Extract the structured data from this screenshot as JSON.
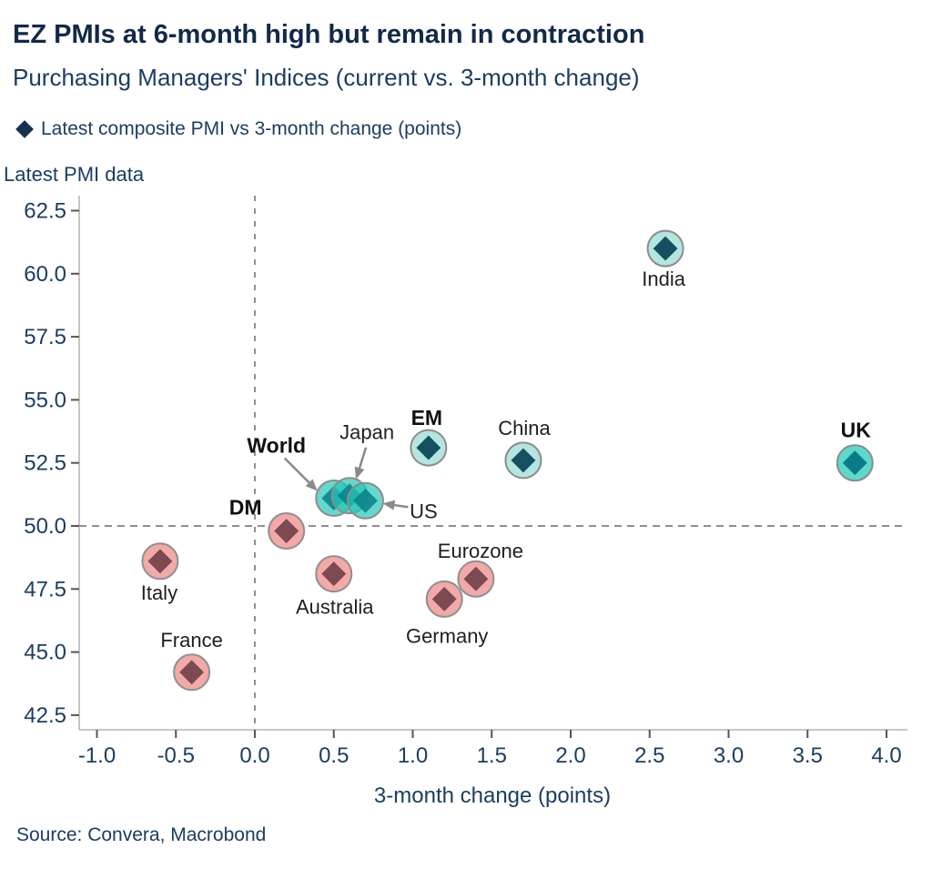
{
  "footer": {
    "source": "Source: Convera, Macrobond"
  },
  "colors": {
    "title_navy": "#12294a",
    "text_navy": "#1c3d63",
    "label_black": "#1f1f1f",
    "axis_line": "#b3b3b3",
    "tick_mark": "#555555",
    "dashed_reference": "#8f8f8f",
    "arrow_gray": "#8a8a8a",
    "legend_marker": "#16324f"
  },
  "legend_icon": "diamond-icon",
  "chart_data": {
    "type": "scatter",
    "title": "EZ PMIs at 6-month high but remain in contraction",
    "subtitle": "Purchasing Managers' Indices (current vs. 3-month change)",
    "legend": {
      "label": "Latest composite PMI vs 3-month change (points)",
      "marker": "diamond-icon"
    },
    "xlabel": "3-month change (points)",
    "ylabel": "Latest PMI data",
    "xticks": [
      -1.0,
      -0.5,
      0.0,
      0.5,
      1.0,
      1.5,
      2.0,
      2.5,
      3.0,
      3.5,
      4.0
    ],
    "yticks": [
      42.5,
      45.0,
      47.5,
      50.0,
      52.5,
      55.0,
      57.5,
      60.0,
      62.5
    ],
    "xlim": [
      -1.11,
      4.12
    ],
    "ylim": [
      41.9,
      63.1
    ],
    "grid": false,
    "legend_position": "top-left",
    "reference_lines": {
      "x": 0.0,
      "y": 50.0
    },
    "groups": {
      "teal_light": {
        "fill": "#b5e5e0",
        "diamond": "#14505f",
        "stroke": "#8c8c8c"
      },
      "teal_bright": {
        "fill": "rgba(34,199,184,0.70)",
        "diamond": "rgba(8,128,138,0.85)",
        "stroke": "#8c8c8c"
      },
      "teal_solid": {
        "fill": "#5cd8cc",
        "diamond": "#0b7c86",
        "stroke": "#8c8c8c"
      },
      "pink": {
        "fill": "#f2a9a7",
        "diamond": "#7b4a52",
        "stroke": "#909090"
      }
    },
    "points": [
      {
        "label": "Italy",
        "x": -0.6,
        "y": 48.6,
        "group": "pink",
        "bold": false,
        "label_offset": [
          -1,
          42
        ]
      },
      {
        "label": "France",
        "x": -0.4,
        "y": 44.2,
        "group": "pink",
        "bold": false,
        "label_offset": [
          0,
          -28
        ]
      },
      {
        "label": "DM",
        "x": 0.2,
        "y": 49.8,
        "group": "pink",
        "bold": true,
        "label_offset": [
          -45,
          -18
        ]
      },
      {
        "label": "Eurozone",
        "x": 1.4,
        "y": 47.9,
        "group": "pink",
        "bold": false,
        "label_offset": [
          5,
          -23
        ]
      },
      {
        "label": "Germany",
        "x": 1.2,
        "y": 47.1,
        "group": "pink",
        "bold": false,
        "label_offset": [
          3,
          48
        ]
      },
      {
        "label": "Australia",
        "x": 0.5,
        "y": 48.1,
        "group": "pink",
        "bold": false,
        "label_offset": [
          1,
          44
        ]
      },
      {
        "label": "World",
        "x": 0.5,
        "y": 51.1,
        "group": "teal_bright",
        "bold": true,
        "label_offset": [
          -63,
          -50
        ],
        "arrow": {
          "from": [
            -54,
            -44
          ],
          "to": [
            -18,
            -8
          ]
        }
      },
      {
        "label": "Japan",
        "x": 0.6,
        "y": 51.2,
        "group": "teal_bright",
        "bold": false,
        "label_offset": [
          19,
          -62
        ],
        "arrow": {
          "from": [
            18,
            -53
          ],
          "to": [
            7,
            -18
          ]
        }
      },
      {
        "label": "US",
        "x": 0.7,
        "y": 51.0,
        "group": "teal_bright",
        "bold": false,
        "label_offset": [
          64,
          19
        ],
        "arrow": {
          "from": [
            47,
            7
          ],
          "to": [
            19,
            3
          ]
        }
      },
      {
        "label": "EM",
        "x": 1.1,
        "y": 53.1,
        "group": "teal_light",
        "bold": true,
        "label_offset": [
          -2,
          -25
        ]
      },
      {
        "label": "China",
        "x": 1.7,
        "y": 52.6,
        "group": "teal_light",
        "bold": false,
        "label_offset": [
          1,
          -28
        ]
      },
      {
        "label": "India",
        "x": 2.6,
        "y": 61.0,
        "group": "teal_light",
        "bold": false,
        "label_offset": [
          -2,
          41
        ]
      },
      {
        "label": "UK",
        "x": 3.8,
        "y": 52.5,
        "group": "teal_solid",
        "bold": true,
        "label_offset": [
          1,
          -28
        ]
      }
    ]
  }
}
